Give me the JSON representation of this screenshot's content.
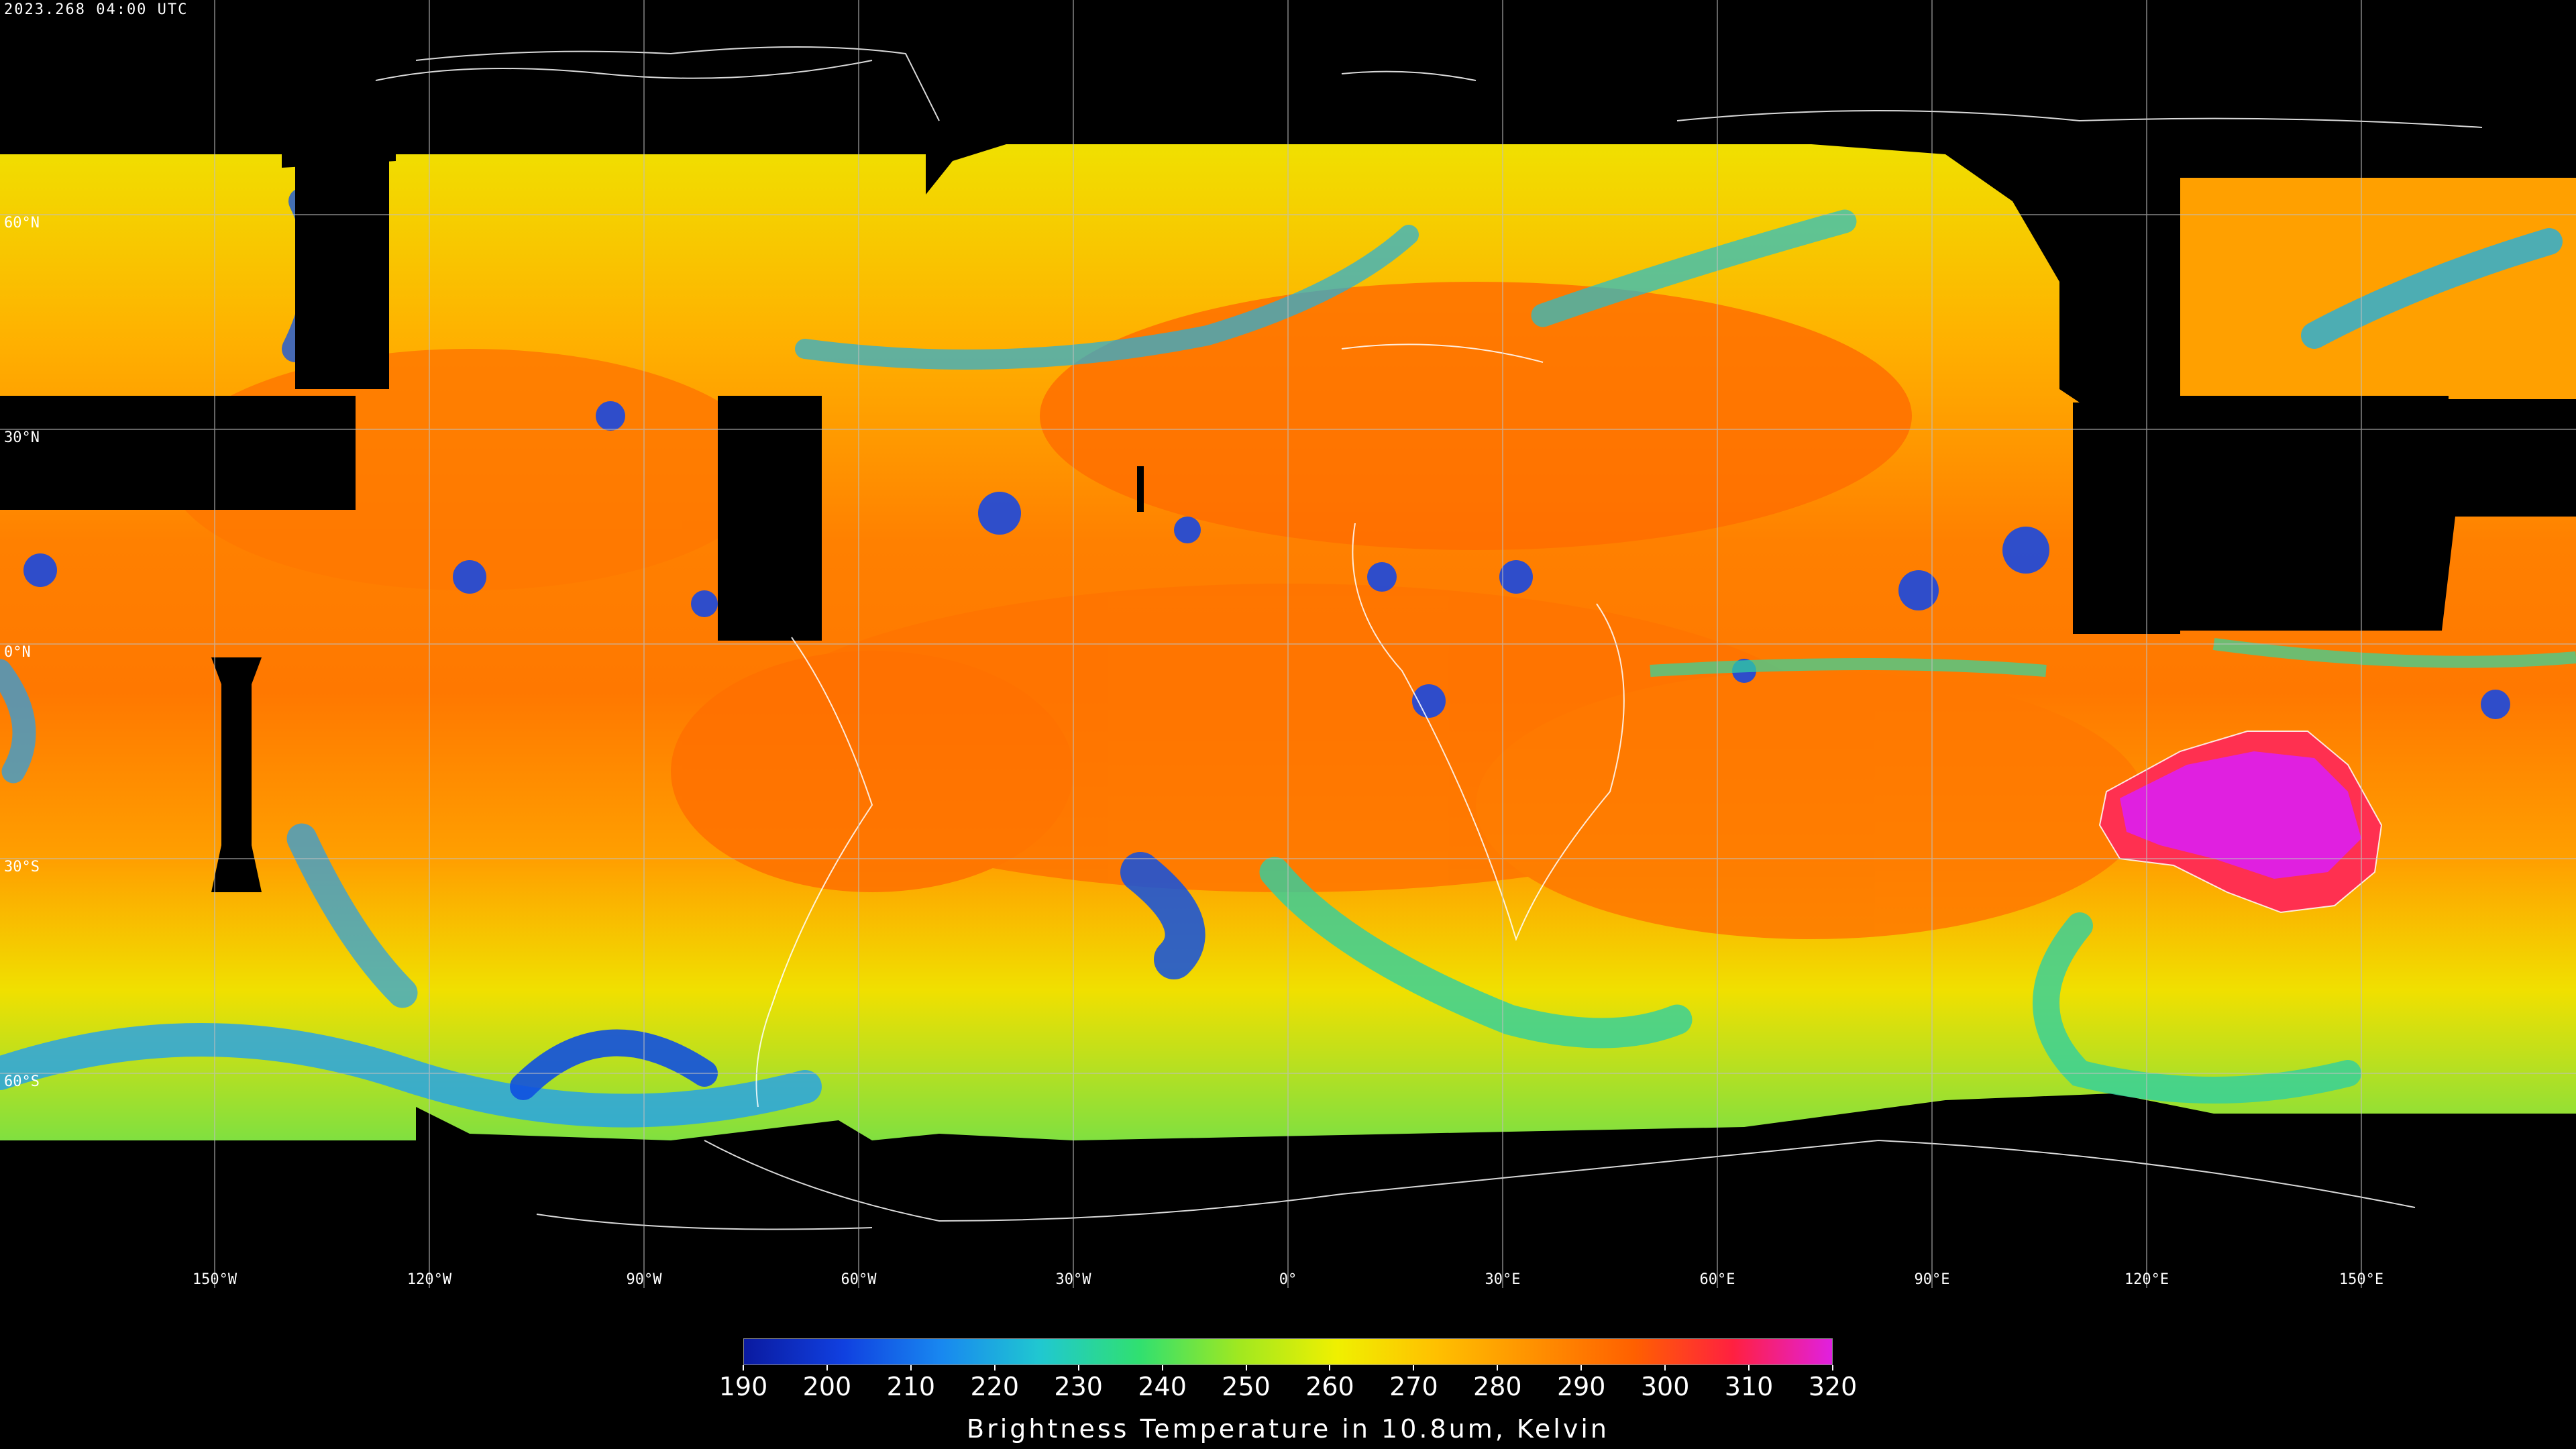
{
  "timestamp": "2023.268 04:00 UTC",
  "latitude_labels": [
    "60°N",
    "30°N",
    "0°N",
    "30°S",
    "60°S"
  ],
  "longitude_labels": [
    "150°W",
    "120°W",
    "90°W",
    "60°W",
    "30°W",
    "0°",
    "30°E",
    "60°E",
    "90°E",
    "120°E",
    "150°E"
  ],
  "colorbar": {
    "title": "Brightness Temperature in 10.8um, Kelvin",
    "ticks": [
      "190",
      "200",
      "210",
      "220",
      "230",
      "240",
      "250",
      "260",
      "270",
      "280",
      "290",
      "300",
      "310",
      "320"
    ],
    "colors": [
      "#0a1aa0",
      "#1040e0",
      "#1888f0",
      "#20c8d0",
      "#30e070",
      "#a0e820",
      "#f0f000",
      "#ffc000",
      "#ff9000",
      "#ff6000",
      "#ff2040",
      "#e020e0"
    ]
  }
}
